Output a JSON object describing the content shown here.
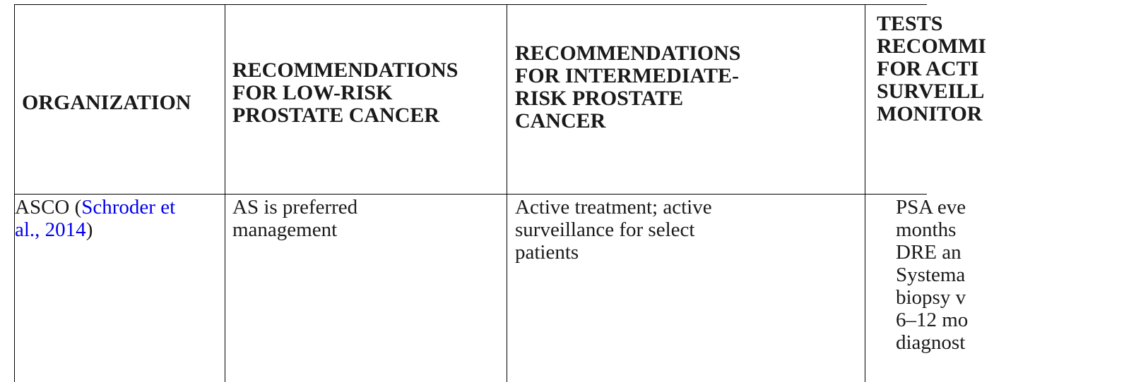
{
  "table": {
    "headers": {
      "organization": [
        "ORGANIZATION"
      ],
      "low_risk": [
        "RECOMMENDATIONS",
        "FOR LOW-RISK",
        "PROSTATE CANCER"
      ],
      "intermediate_risk": [
        "RECOMMENDATIONS",
        "FOR INTERMEDIATE-",
        "RISK PROSTATE",
        "CANCER"
      ],
      "tests": [
        "TESTS",
        "RECOMMI",
        "FOR ACTI",
        "SURVEILL",
        "MONITOR"
      ]
    },
    "rows": [
      {
        "organization_prefix": "ASCO (",
        "organization_link_line1": "Schroder et",
        "organization_link_line2": "al., 2014",
        "organization_suffix": ")",
        "low_risk": [
          "AS is preferred",
          "management"
        ],
        "intermediate_risk": [
          "Active treatment; active",
          "surveillance for select",
          "patients"
        ],
        "tests": [
          "PSA eve",
          "months",
          "DRE an",
          "Systema",
          "biopsy v",
          "6–12 mo",
          "diagnost"
        ]
      }
    ]
  },
  "colors": {
    "link": "#0000ee",
    "border": "#000000",
    "text": "#1a1a1a"
  }
}
